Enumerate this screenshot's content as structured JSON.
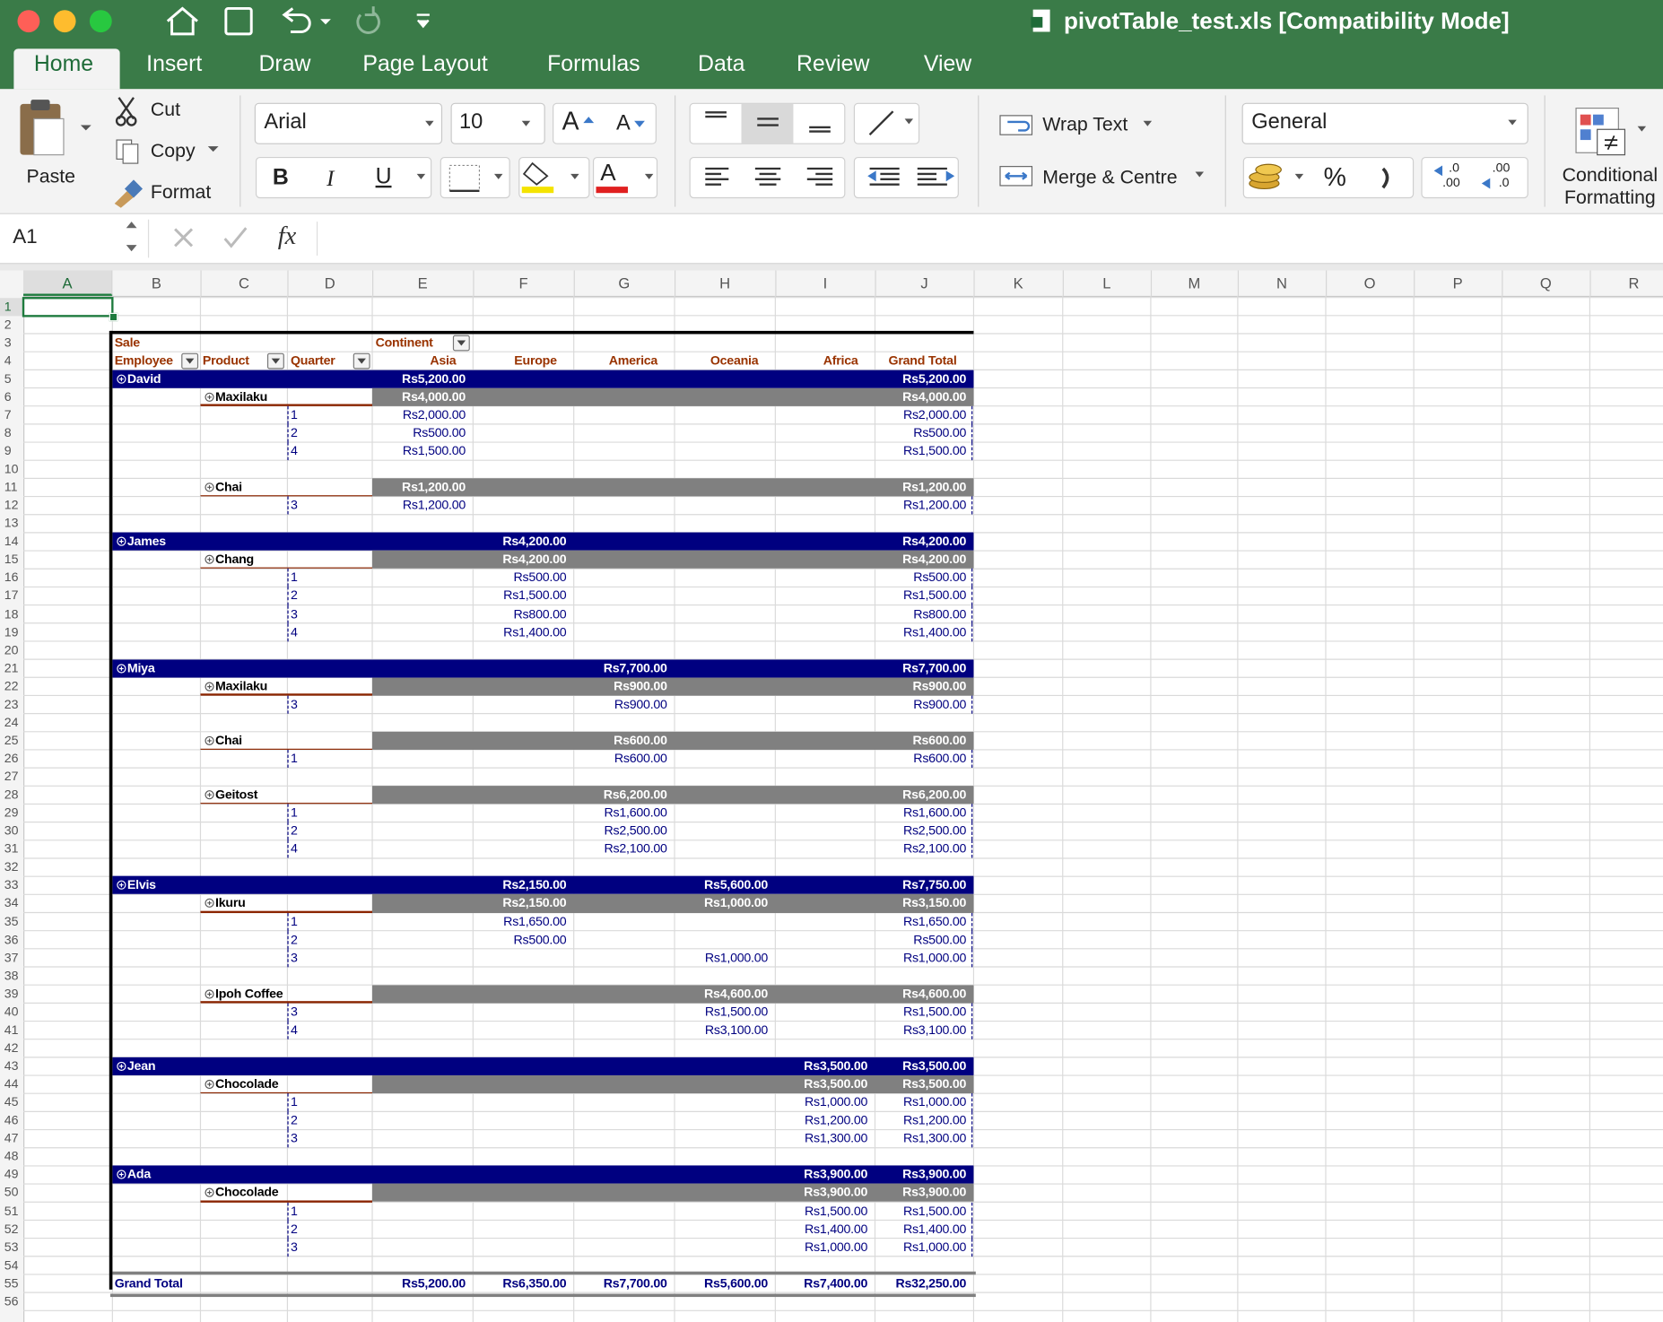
{
  "window": {
    "title": "pivotTable_test.xls  [Compatibility Mode]"
  },
  "tabs": [
    "Home",
    "Insert",
    "Draw",
    "Page Layout",
    "Formulas",
    "Data",
    "Review",
    "View"
  ],
  "ribbon": {
    "paste": "Paste",
    "cut": "Cut",
    "copy": "Copy",
    "format": "Format",
    "font_name": "Arial",
    "font_size": "10",
    "grow_font": "A",
    "shrink_font": "A",
    "bold": "B",
    "italic": "I",
    "underline": "U",
    "font_color": "A",
    "wrap_text": "Wrap Text",
    "merge": "Merge & Centre",
    "number_format": "General",
    "percent": "%",
    "increase_decimal": [
      ".0",
      ".00"
    ],
    "decrease_decimal": [
      ".00",
      ".0"
    ],
    "conditional_formatting": "Conditional Formatting"
  },
  "formula_bar": {
    "name_box": "A1",
    "fx": "fx"
  },
  "columns": [
    "A",
    "B",
    "C",
    "D",
    "E",
    "F",
    "G",
    "H",
    "I",
    "J",
    "K",
    "L",
    "M",
    "N",
    "O",
    "P",
    "Q",
    "R"
  ],
  "row_numbers": [
    1,
    2,
    3,
    4,
    5,
    6,
    7,
    8,
    9,
    10,
    11,
    12,
    13,
    14,
    15,
    16,
    17,
    18,
    19,
    20,
    21,
    22,
    23,
    24,
    25,
    26,
    27,
    28,
    29,
    30,
    31,
    32,
    33,
    34,
    35,
    36,
    37,
    38,
    39,
    40,
    41,
    42,
    43,
    44,
    45,
    46,
    47,
    48,
    49,
    50,
    51,
    52,
    53,
    54,
    55,
    56
  ],
  "pivot": {
    "header": {
      "sale": "Sale",
      "continent": "Continent",
      "employee": "Employee",
      "product": "Product",
      "quarter": "Quarter",
      "continents": [
        "Asia",
        "Europe",
        "America",
        "Oceania",
        "Africa",
        "Grand Total"
      ]
    },
    "rows": [
      {
        "employee": "David",
        "values": [
          "Rs5,200.00",
          null,
          null,
          null,
          null,
          "Rs5,200.00"
        ]
      },
      {
        "product": "Maxilaku",
        "values": [
          "Rs4,000.00",
          null,
          null,
          null,
          null,
          "Rs4,000.00"
        ]
      },
      {
        "quarter": 1,
        "values": [
          "Rs2,000.00",
          null,
          null,
          null,
          null,
          "Rs2,000.00"
        ]
      },
      {
        "quarter": 2,
        "values": [
          "Rs500.00",
          null,
          null,
          null,
          null,
          "Rs500.00"
        ]
      },
      {
        "quarter": 4,
        "values": [
          "Rs1,500.00",
          null,
          null,
          null,
          null,
          "Rs1,500.00"
        ]
      },
      null,
      {
        "product": "Chai",
        "values": [
          "Rs1,200.00",
          null,
          null,
          null,
          null,
          "Rs1,200.00"
        ]
      },
      {
        "quarter": 3,
        "values": [
          "Rs1,200.00",
          null,
          null,
          null,
          null,
          "Rs1,200.00"
        ]
      },
      null,
      {
        "employee": "James",
        "values": [
          null,
          "Rs4,200.00",
          null,
          null,
          null,
          "Rs4,200.00"
        ]
      },
      {
        "product": "Chang",
        "values": [
          null,
          "Rs4,200.00",
          null,
          null,
          null,
          "Rs4,200.00"
        ]
      },
      {
        "quarter": 1,
        "values": [
          null,
          "Rs500.00",
          null,
          null,
          null,
          "Rs500.00"
        ]
      },
      {
        "quarter": 2,
        "values": [
          null,
          "Rs1,500.00",
          null,
          null,
          null,
          "Rs1,500.00"
        ]
      },
      {
        "quarter": 3,
        "values": [
          null,
          "Rs800.00",
          null,
          null,
          null,
          "Rs800.00"
        ]
      },
      {
        "quarter": 4,
        "values": [
          null,
          "Rs1,400.00",
          null,
          null,
          null,
          "Rs1,400.00"
        ]
      },
      null,
      {
        "employee": "Miya",
        "values": [
          null,
          null,
          "Rs7,700.00",
          null,
          null,
          "Rs7,700.00"
        ]
      },
      {
        "product": "Maxilaku",
        "values": [
          null,
          null,
          "Rs900.00",
          null,
          null,
          "Rs900.00"
        ]
      },
      {
        "quarter": 3,
        "values": [
          null,
          null,
          "Rs900.00",
          null,
          null,
          "Rs900.00"
        ]
      },
      null,
      {
        "product": "Chai",
        "values": [
          null,
          null,
          "Rs600.00",
          null,
          null,
          "Rs600.00"
        ]
      },
      {
        "quarter": 1,
        "values": [
          null,
          null,
          "Rs600.00",
          null,
          null,
          "Rs600.00"
        ]
      },
      null,
      {
        "product": "Geitost",
        "values": [
          null,
          null,
          "Rs6,200.00",
          null,
          null,
          "Rs6,200.00"
        ]
      },
      {
        "quarter": 1,
        "values": [
          null,
          null,
          "Rs1,600.00",
          null,
          null,
          "Rs1,600.00"
        ]
      },
      {
        "quarter": 2,
        "values": [
          null,
          null,
          "Rs2,500.00",
          null,
          null,
          "Rs2,500.00"
        ]
      },
      {
        "quarter": 4,
        "values": [
          null,
          null,
          "Rs2,100.00",
          null,
          null,
          "Rs2,100.00"
        ]
      },
      null,
      {
        "employee": "Elvis",
        "values": [
          null,
          "Rs2,150.00",
          null,
          "Rs5,600.00",
          null,
          "Rs7,750.00"
        ]
      },
      {
        "product": "Ikuru",
        "values": [
          null,
          "Rs2,150.00",
          null,
          "Rs1,000.00",
          null,
          "Rs3,150.00"
        ]
      },
      {
        "quarter": 1,
        "values": [
          null,
          "Rs1,650.00",
          null,
          null,
          null,
          "Rs1,650.00"
        ]
      },
      {
        "quarter": 2,
        "values": [
          null,
          "Rs500.00",
          null,
          null,
          null,
          "Rs500.00"
        ]
      },
      {
        "quarter": 3,
        "values": [
          null,
          null,
          null,
          "Rs1,000.00",
          null,
          "Rs1,000.00"
        ]
      },
      null,
      {
        "product": "Ipoh Coffee",
        "values": [
          null,
          null,
          null,
          "Rs4,600.00",
          null,
          "Rs4,600.00"
        ]
      },
      {
        "quarter": 3,
        "values": [
          null,
          null,
          null,
          "Rs1,500.00",
          null,
          "Rs1,500.00"
        ]
      },
      {
        "quarter": 4,
        "values": [
          null,
          null,
          null,
          "Rs3,100.00",
          null,
          "Rs3,100.00"
        ]
      },
      null,
      {
        "employee": "Jean",
        "values": [
          null,
          null,
          null,
          null,
          "Rs3,500.00",
          "Rs3,500.00"
        ]
      },
      {
        "product": "Chocolade",
        "values": [
          null,
          null,
          null,
          null,
          "Rs3,500.00",
          "Rs3,500.00"
        ]
      },
      {
        "quarter": 1,
        "values": [
          null,
          null,
          null,
          null,
          "Rs1,000.00",
          "Rs1,000.00"
        ]
      },
      {
        "quarter": 2,
        "values": [
          null,
          null,
          null,
          null,
          "Rs1,200.00",
          "Rs1,200.00"
        ]
      },
      {
        "quarter": 3,
        "values": [
          null,
          null,
          null,
          null,
          "Rs1,300.00",
          "Rs1,300.00"
        ]
      },
      null,
      {
        "employee": "Ada",
        "values": [
          null,
          null,
          null,
          null,
          "Rs3,900.00",
          "Rs3,900.00"
        ]
      },
      {
        "product": "Chocolade",
        "values": [
          null,
          null,
          null,
          null,
          "Rs3,900.00",
          "Rs3,900.00"
        ]
      },
      {
        "quarter": 1,
        "values": [
          null,
          null,
          null,
          null,
          "Rs1,500.00",
          "Rs1,500.00"
        ]
      },
      {
        "quarter": 2,
        "values": [
          null,
          null,
          null,
          null,
          "Rs1,400.00",
          "Rs1,400.00"
        ]
      },
      {
        "quarter": 3,
        "values": [
          null,
          null,
          null,
          null,
          "Rs1,000.00",
          "Rs1,000.00"
        ]
      },
      null,
      {
        "grand_total": "Grand Total",
        "values": [
          "Rs5,200.00",
          "Rs6,350.00",
          "Rs7,700.00",
          "Rs5,600.00",
          "Rs7,400.00",
          "Rs32,250.00"
        ]
      }
    ]
  }
}
